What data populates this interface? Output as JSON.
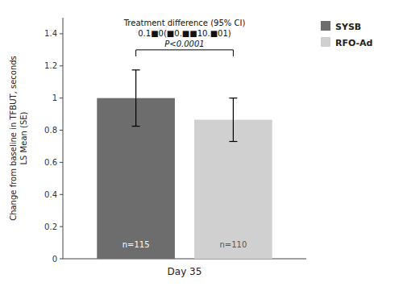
{
  "chart_data": {
    "type": "bar",
    "categories": [
      "Day 35"
    ],
    "series": [
      {
        "name": "SYSB",
        "color": "#6d6d6d",
        "values": [
          1.0
        ],
        "errors": [
          0.175
        ],
        "n_labels": [
          "n=115"
        ]
      },
      {
        "name": "RFO-Ad",
        "color": "#d0d0d0",
        "values": [
          0.865
        ],
        "errors": [
          0.135
        ],
        "n_labels": [
          "n=110"
        ]
      }
    ],
    "ylabel": "Change from baseline in TFBUT, seconds\nLS Mean (SE)",
    "ylim": [
      0,
      1.5
    ],
    "yticks": [
      0.0,
      0.2,
      0.4,
      0.6,
      0.8,
      1.0,
      1.2,
      1.4
    ],
    "annotations": [
      "Treatment difference (95% CI)",
      "0.1■0(■0.■■10.■01)",
      "P<0.0001"
    ],
    "bracket_y": 1.3,
    "legend": "right",
    "grid": false
  }
}
